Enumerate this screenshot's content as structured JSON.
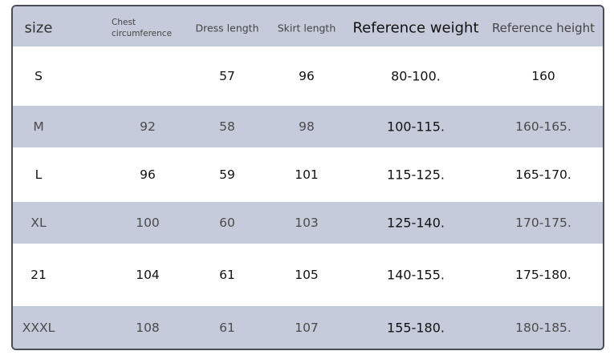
{
  "table": {
    "header": [
      "size",
      "Chest circumference",
      "Dress length",
      "Skirt length",
      "Reference weight",
      "Reference height"
    ],
    "rows": [
      [
        "S",
        null,
        "57",
        "96",
        "80-100.",
        "160"
      ],
      [
        "M",
        "92",
        "58",
        "98",
        "100-115.",
        "160-165."
      ],
      [
        "L",
        "96",
        "59",
        "101",
        "115-125.",
        "165-170."
      ],
      [
        "XL",
        "100",
        "60",
        "103",
        "125-140.",
        "170-175."
      ],
      [
        "21",
        "104",
        "61",
        "105",
        "140-155.",
        "175-180."
      ],
      [
        "XXXL",
        "108",
        "61",
        "107",
        "155-180.",
        "180-185."
      ]
    ]
  }
}
